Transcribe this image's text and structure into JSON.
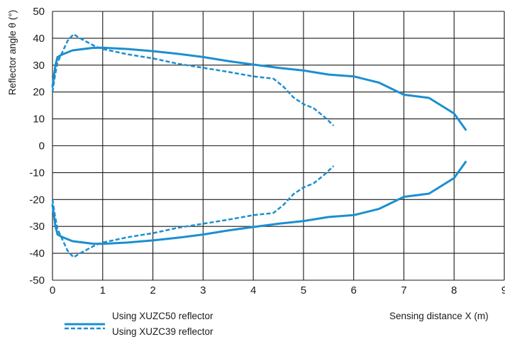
{
  "chart_data": {
    "type": "line",
    "title": "",
    "xlabel": "Sensing distance X (m)",
    "ylabel": "Reflector angle θ (°)",
    "xlim": [
      0,
      9
    ],
    "ylim": [
      -50,
      50
    ],
    "x_ticks": [
      0,
      1,
      2,
      3,
      4,
      5,
      6,
      7,
      8,
      9
    ],
    "y_ticks": [
      -50,
      -40,
      -30,
      -20,
      -10,
      0,
      10,
      20,
      30,
      40,
      50
    ],
    "grid": true,
    "legend_position": "bottom-left",
    "colors": {
      "series": "#1b8fcf",
      "grid": "#1a1a1a"
    },
    "series": [
      {
        "name": "Using XUZC50 reflector",
        "style": "solid",
        "upper": [
          [
            0.0,
            22
          ],
          [
            0.03,
            26
          ],
          [
            0.06,
            30
          ],
          [
            0.1,
            33
          ],
          [
            0.2,
            34
          ],
          [
            0.4,
            35.5
          ],
          [
            0.8,
            36.4
          ],
          [
            1.0,
            36.5
          ],
          [
            1.5,
            36
          ],
          [
            2.0,
            35.2
          ],
          [
            2.5,
            34.2
          ],
          [
            3.0,
            33
          ],
          [
            3.5,
            31.5
          ],
          [
            4.0,
            30.2
          ],
          [
            4.5,
            29
          ],
          [
            5.0,
            28
          ],
          [
            5.5,
            26.5
          ],
          [
            6.0,
            25.8
          ],
          [
            6.5,
            23.5
          ],
          [
            7.0,
            19
          ],
          [
            7.5,
            17.8
          ],
          [
            8.0,
            12
          ],
          [
            8.23,
            6
          ]
        ],
        "lower": [
          [
            0.0,
            -22
          ],
          [
            0.03,
            -26
          ],
          [
            0.06,
            -30
          ],
          [
            0.1,
            -33
          ],
          [
            0.2,
            -34
          ],
          [
            0.4,
            -35.5
          ],
          [
            0.8,
            -36.4
          ],
          [
            1.0,
            -36.5
          ],
          [
            1.5,
            -36
          ],
          [
            2.0,
            -35.2
          ],
          [
            2.5,
            -34.2
          ],
          [
            3.0,
            -33
          ],
          [
            3.5,
            -31.5
          ],
          [
            4.0,
            -30.2
          ],
          [
            4.5,
            -29
          ],
          [
            5.0,
            -28
          ],
          [
            5.5,
            -26.5
          ],
          [
            6.0,
            -25.8
          ],
          [
            6.5,
            -23.5
          ],
          [
            7.0,
            -19
          ],
          [
            7.5,
            -17.8
          ],
          [
            8.0,
            -12
          ],
          [
            8.23,
            -6
          ]
        ]
      },
      {
        "name": "Using XUZC39 reflector",
        "style": "dashed",
        "upper": [
          [
            0.0,
            20
          ],
          [
            0.05,
            26
          ],
          [
            0.1,
            31
          ],
          [
            0.2,
            35
          ],
          [
            0.3,
            39
          ],
          [
            0.42,
            41.5
          ],
          [
            0.55,
            40
          ],
          [
            0.7,
            38.5
          ],
          [
            0.85,
            37
          ],
          [
            1.0,
            36
          ],
          [
            1.5,
            34
          ],
          [
            2.0,
            32.5
          ],
          [
            2.5,
            30.5
          ],
          [
            3.0,
            29
          ],
          [
            3.5,
            27.5
          ],
          [
            4.0,
            25.8
          ],
          [
            4.4,
            25
          ],
          [
            4.6,
            22
          ],
          [
            4.8,
            18
          ],
          [
            5.0,
            15.5
          ],
          [
            5.2,
            14
          ],
          [
            5.4,
            11
          ],
          [
            5.6,
            7.5
          ]
        ],
        "lower": [
          [
            0.0,
            -20
          ],
          [
            0.05,
            -26
          ],
          [
            0.1,
            -31
          ],
          [
            0.2,
            -35
          ],
          [
            0.3,
            -39
          ],
          [
            0.42,
            -41.5
          ],
          [
            0.55,
            -40
          ],
          [
            0.7,
            -38.5
          ],
          [
            0.85,
            -37
          ],
          [
            1.0,
            -36
          ],
          [
            1.5,
            -34
          ],
          [
            2.0,
            -32.5
          ],
          [
            2.5,
            -30.5
          ],
          [
            3.0,
            -29
          ],
          [
            3.5,
            -27.5
          ],
          [
            4.0,
            -25.8
          ],
          [
            4.4,
            -25
          ],
          [
            4.6,
            -22
          ],
          [
            4.8,
            -18
          ],
          [
            5.0,
            -15.5
          ],
          [
            5.2,
            -14
          ],
          [
            5.4,
            -11
          ],
          [
            5.6,
            -7.5
          ]
        ]
      }
    ]
  }
}
